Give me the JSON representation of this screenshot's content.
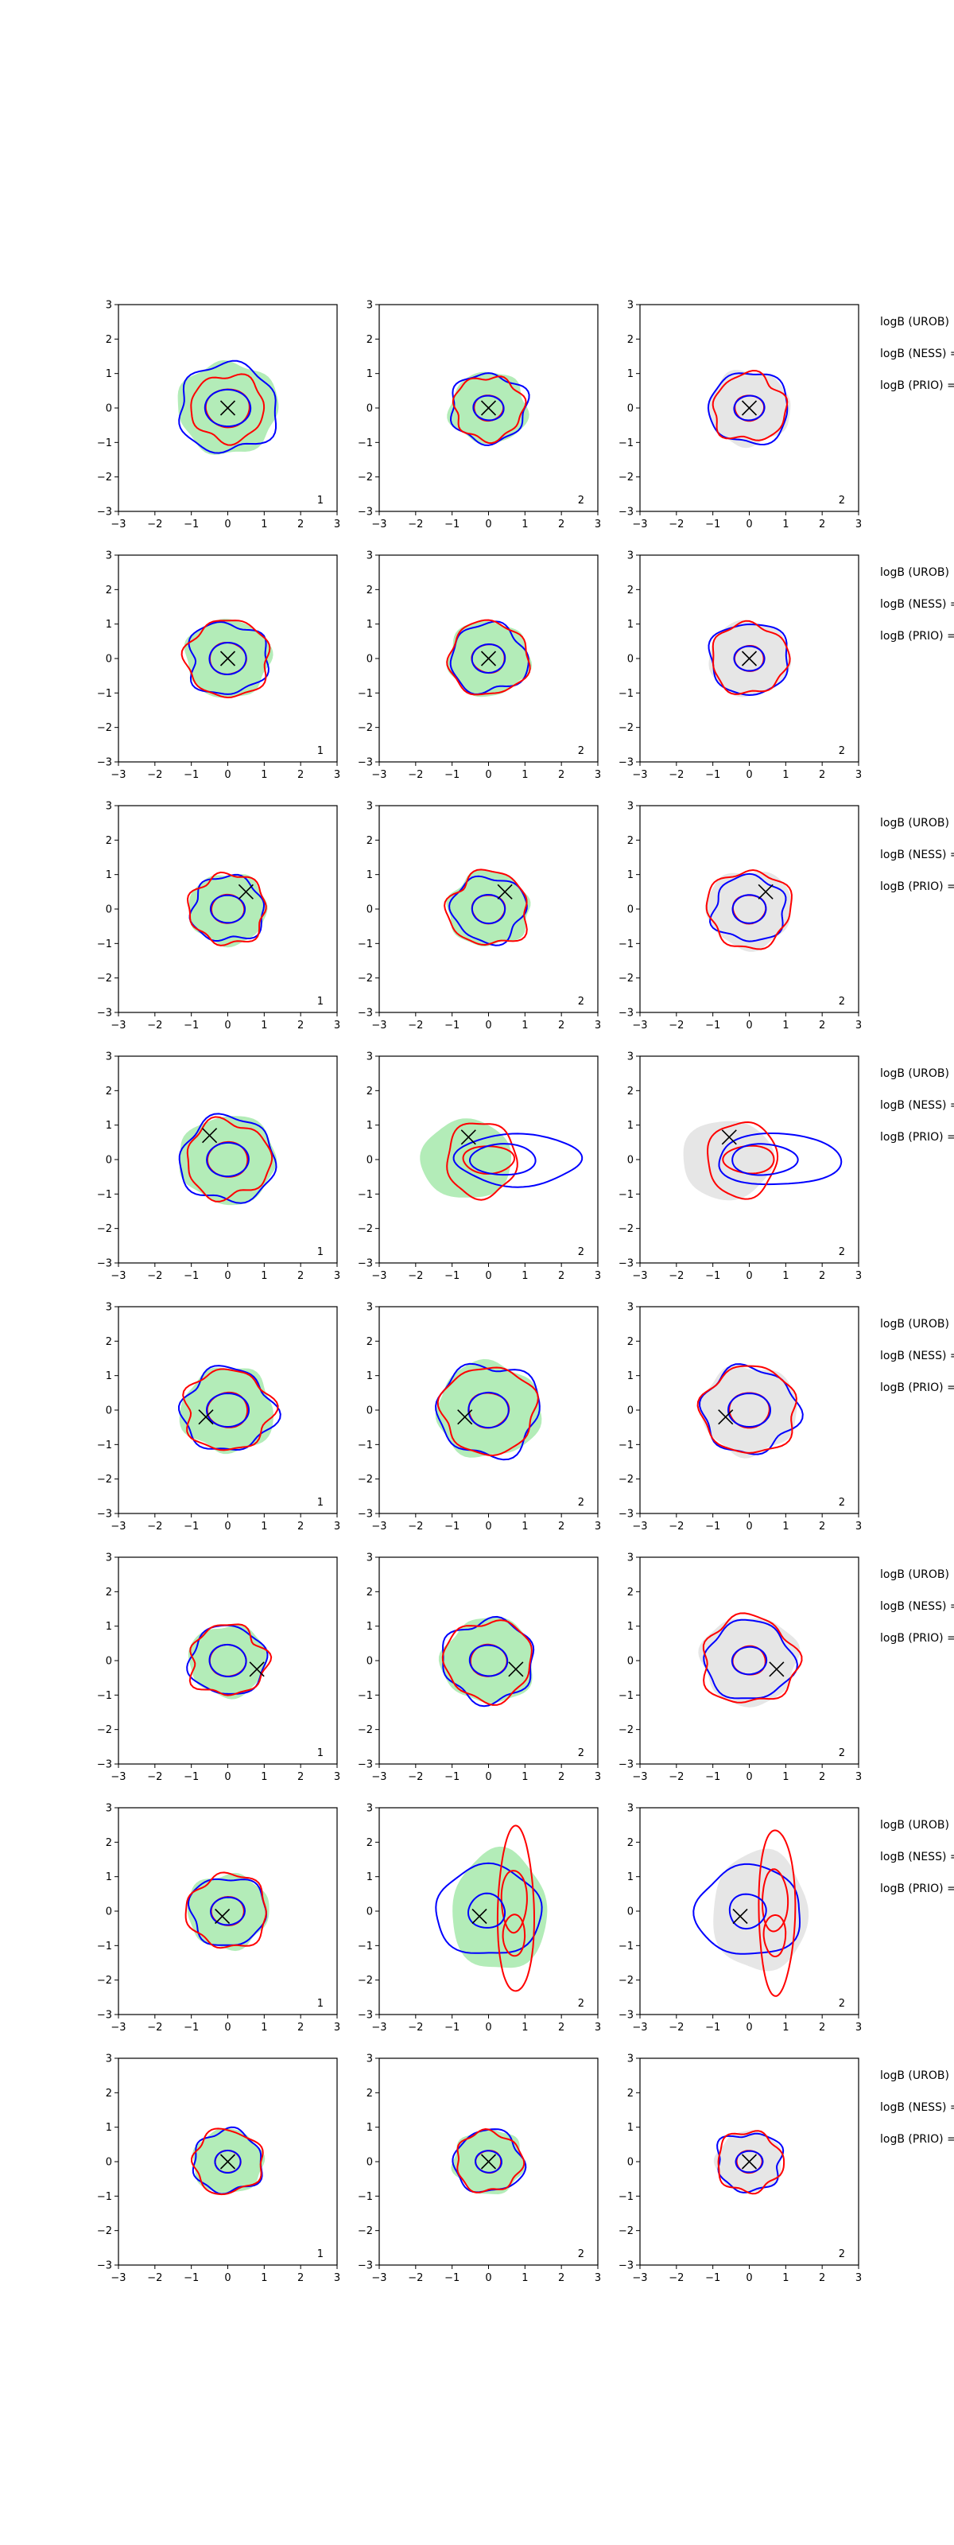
{
  "figure": {
    "colors": {
      "nominal_fill": "#b3ecb8",
      "grey_fill": "#e6e6e6",
      "contour_a": "#0000ff",
      "contour_b": "#ff0000",
      "truth_marker": "#000000",
      "axes": "#000000"
    },
    "ticks": [
      "−3",
      "−2",
      "−1",
      "0",
      "1",
      "2",
      "3"
    ]
  },
  "chart_data": [
    {
      "type": "contour",
      "row": 1,
      "col": 1,
      "xlim": [
        -3,
        3
      ],
      "ylim": [
        -3,
        3
      ],
      "panel_label": "1",
      "truth": [
        0,
        0
      ],
      "shading": "green",
      "inner": 0.6,
      "blue": 1.35,
      "red": 1.0
    },
    {
      "type": "contour",
      "row": 1,
      "col": 2,
      "xlim": [
        -3,
        3
      ],
      "ylim": [
        -3,
        3
      ],
      "panel_label": "2",
      "truth": [
        0,
        0
      ],
      "shading": "green",
      "inner": 0.4,
      "blue": 1.05,
      "red": 0.95
    },
    {
      "type": "contour",
      "row": 1,
      "col": 3,
      "xlim": [
        -3,
        3
      ],
      "ylim": [
        -3,
        3
      ],
      "panel_label": "2",
      "truth": [
        0,
        0
      ],
      "shading": "grey",
      "inner": 0.4,
      "blue": 1.1,
      "red": 1.0
    },
    {
      "type": "contour",
      "row": 2,
      "col": 1,
      "xlim": [
        -3,
        3
      ],
      "ylim": [
        -3,
        3
      ],
      "panel_label": "1",
      "truth": [
        0,
        0
      ],
      "shading": "green",
      "inner": 0.5,
      "blue": 1.1,
      "red": 1.15
    },
    {
      "type": "contour",
      "row": 2,
      "col": 2,
      "xlim": [
        -3,
        3
      ],
      "ylim": [
        -3,
        3
      ],
      "panel_label": "2",
      "truth": [
        0,
        0
      ],
      "shading": "green",
      "inner": 0.45,
      "blue": 1.05,
      "red": 1.1
    },
    {
      "type": "contour",
      "row": 2,
      "col": 3,
      "xlim": [
        -3,
        3
      ],
      "ylim": [
        -3,
        3
      ],
      "panel_label": "2",
      "truth": [
        0,
        0
      ],
      "shading": "grey",
      "inner": 0.4,
      "blue": 1.1,
      "red": 1.05
    },
    {
      "type": "contour",
      "row": 3,
      "col": 1,
      "xlim": [
        -3,
        3
      ],
      "ylim": [
        -3,
        3
      ],
      "panel_label": "1",
      "truth": [
        0.5,
        0.5
      ],
      "shading": "green",
      "inner": 0.45,
      "blue": 1.0,
      "red": 1.05
    },
    {
      "type": "contour",
      "row": 3,
      "col": 2,
      "xlim": [
        -3,
        3
      ],
      "ylim": [
        -3,
        3
      ],
      "panel_label": "2",
      "truth": [
        0.45,
        0.5
      ],
      "shading": "green",
      "inner": 0.45,
      "blue": 1.0,
      "red": 1.1
    },
    {
      "type": "contour",
      "row": 3,
      "col": 3,
      "xlim": [
        -3,
        3
      ],
      "ylim": [
        -3,
        3
      ],
      "panel_label": "2",
      "truth": [
        0.45,
        0.5
      ],
      "shading": "grey",
      "inner": 0.45,
      "blue": 1.0,
      "red": 1.15
    },
    {
      "type": "contour",
      "row": 4,
      "col": 1,
      "xlim": [
        -3,
        3
      ],
      "ylim": [
        -3,
        3
      ],
      "panel_label": "1",
      "truth": [
        -0.5,
        0.7
      ],
      "shading": "green",
      "inner": 0.55,
      "blue": 1.3,
      "red": 1.15
    },
    {
      "type": "contour",
      "row": 4,
      "col": 2,
      "xlim": [
        -3,
        3
      ],
      "ylim": [
        -3,
        3
      ],
      "panel_label": "2",
      "truth": [
        -0.55,
        0.65
      ],
      "shading": "green-wide",
      "inner": 0.5,
      "blue": 1.4,
      "red": 1.1
    },
    {
      "type": "contour",
      "row": 4,
      "col": 3,
      "xlim": [
        -3,
        3
      ],
      "ylim": [
        -3,
        3
      ],
      "panel_label": "2",
      "truth": [
        -0.55,
        0.65
      ],
      "shading": "grey-wide",
      "inner": 0.5,
      "blue": 1.4,
      "red": 1.1
    },
    {
      "type": "contour",
      "row": 5,
      "col": 1,
      "xlim": [
        -3,
        3
      ],
      "ylim": [
        -3,
        3
      ],
      "panel_label": "1",
      "truth": [
        -0.6,
        -0.2
      ],
      "shading": "green",
      "inner": 0.55,
      "blue": 1.25,
      "red": 1.2
    },
    {
      "type": "contour",
      "row": 5,
      "col": 2,
      "xlim": [
        -3,
        3
      ],
      "ylim": [
        -3,
        3
      ],
      "panel_label": "2",
      "truth": [
        -0.65,
        -0.2
      ],
      "shading": "green",
      "inner": 0.55,
      "blue": 1.4,
      "red": 1.3
    },
    {
      "type": "contour",
      "row": 5,
      "col": 3,
      "xlim": [
        -3,
        3
      ],
      "ylim": [
        -3,
        3
      ],
      "panel_label": "2",
      "truth": [
        -0.65,
        -0.2
      ],
      "shading": "grey",
      "inner": 0.55,
      "blue": 1.3,
      "red": 1.3
    },
    {
      "type": "contour",
      "row": 6,
      "col": 1,
      "xlim": [
        -3,
        3
      ],
      "ylim": [
        -3,
        3
      ],
      "panel_label": "1",
      "truth": [
        0.8,
        -0.25
      ],
      "shading": "green",
      "inner": 0.5,
      "blue": 1.05,
      "red": 1.05
    },
    {
      "type": "contour",
      "row": 6,
      "col": 2,
      "xlim": [
        -3,
        3
      ],
      "ylim": [
        -3,
        3
      ],
      "panel_label": "2",
      "truth": [
        0.75,
        -0.25
      ],
      "shading": "green",
      "inner": 0.5,
      "blue": 1.25,
      "red": 1.2
    },
    {
      "type": "contour",
      "row": 6,
      "col": 3,
      "xlim": [
        -3,
        3
      ],
      "ylim": [
        -3,
        3
      ],
      "panel_label": "2",
      "truth": [
        0.75,
        -0.25
      ],
      "shading": "grey",
      "inner": 0.45,
      "blue": 1.2,
      "red": 1.3
    },
    {
      "type": "contour",
      "row": 7,
      "col": 1,
      "xlim": [
        -3,
        3
      ],
      "ylim": [
        -3,
        3
      ],
      "panel_label": "1",
      "truth": [
        -0.15,
        -0.15
      ],
      "shading": "green",
      "inner": 0.45,
      "blue": 1.05,
      "red": 1.1
    },
    {
      "type": "contour",
      "row": 7,
      "col": 2,
      "xlim": [
        -3,
        3
      ],
      "ylim": [
        -3,
        3
      ],
      "panel_label": "2",
      "truth": [
        -0.25,
        -0.15
      ],
      "shading": "green-tall",
      "inner": 0.5,
      "blue": 1.45,
      "red": 1.0
    },
    {
      "type": "contour",
      "row": 7,
      "col": 3,
      "xlim": [
        -3,
        3
      ],
      "ylim": [
        -3,
        3
      ],
      "panel_label": "2",
      "truth": [
        -0.25,
        -0.15
      ],
      "shading": "grey-tall",
      "inner": 0.5,
      "blue": 1.35,
      "red": 1.0
    },
    {
      "type": "contour",
      "row": 8,
      "col": 1,
      "xlim": [
        -3,
        3
      ],
      "ylim": [
        -3,
        3
      ],
      "panel_label": "1",
      "truth": [
        0,
        0
      ],
      "shading": "green",
      "inner": 0.35,
      "blue": 0.95,
      "red": 0.95
    },
    {
      "type": "contour",
      "row": 8,
      "col": 2,
      "xlim": [
        -3,
        3
      ],
      "ylim": [
        -3,
        3
      ],
      "panel_label": "2",
      "truth": [
        0,
        0
      ],
      "shading": "green",
      "inner": 0.35,
      "blue": 0.95,
      "red": 0.9
    },
    {
      "type": "contour",
      "row": 8,
      "col": 3,
      "xlim": [
        -3,
        3
      ],
      "ylim": [
        -3,
        3
      ],
      "panel_label": "2",
      "truth": [
        0,
        0
      ],
      "shading": "grey",
      "inner": 0.35,
      "blue": 0.9,
      "red": 0.9
    }
  ],
  "side_text": [
    {
      "row": 1,
      "lines": [
        "logB (UROB)",
        "logB (NESS) =",
        "logB (PRIO) ="
      ]
    },
    {
      "row": 2,
      "lines": [
        "logB (UROB)",
        "logB (NESS) =",
        "logB (PRIO) ="
      ]
    },
    {
      "row": 3,
      "lines": [
        "logB (UROB)",
        "logB (NESS) =",
        "logB (PRIO) ="
      ]
    },
    {
      "row": 4,
      "lines": [
        "logB (UROB)",
        "logB (NESS) =",
        "logB (PRIO) ="
      ]
    },
    {
      "row": 5,
      "lines": [
        "logB (UROB)",
        "logB (NESS) =",
        "logB (PRIO) ="
      ]
    },
    {
      "row": 6,
      "lines": [
        "logB (UROB)",
        "logB (NESS) =",
        "logB (PRIO) ="
      ]
    },
    {
      "row": 7,
      "lines": [
        "logB (UROB)",
        "logB (NESS) =",
        "logB (PRIO) ="
      ]
    },
    {
      "row": 8,
      "lines": [
        "logB (UROB)",
        "logB (NESS) =",
        "logB (PRIO) ="
      ]
    }
  ]
}
